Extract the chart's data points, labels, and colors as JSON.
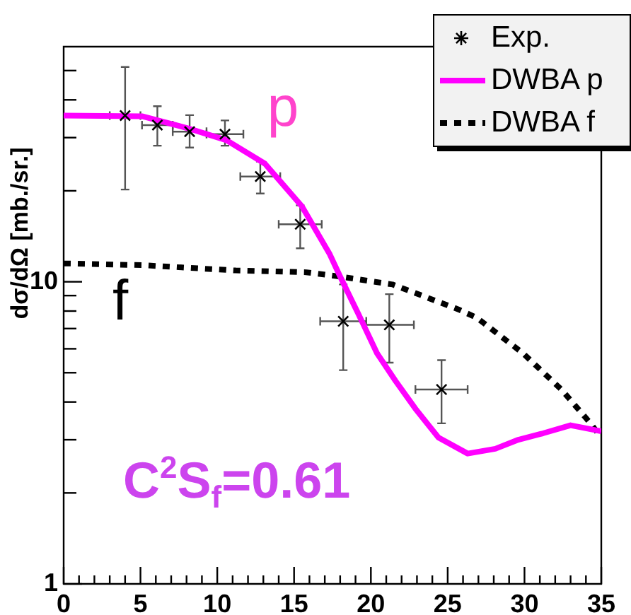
{
  "chart_data": {
    "type": "scatter",
    "ylabel": "dσ/dΩ [mb./sr.]",
    "log": "y",
    "grid": false,
    "legend": "top right",
    "xlim": [
      0,
      35
    ],
    "ylim": [
      1,
      60
    ],
    "xticks": [
      0,
      {
        "value": 1,
        "label": null
      },
      {
        "value": 2,
        "label": null
      },
      {
        "value": 3,
        "label": null
      },
      {
        "value": 4,
        "label": null
      },
      5,
      {
        "value": 6,
        "label": null
      },
      {
        "value": 7,
        "label": null
      },
      {
        "value": 8,
        "label": null
      },
      {
        "value": 9,
        "label": null
      },
      10,
      {
        "value": 11,
        "label": null
      },
      {
        "value": 12,
        "label": null
      },
      {
        "value": 13,
        "label": null
      },
      {
        "value": 14,
        "label": null
      },
      15,
      {
        "value": 16,
        "label": null
      },
      {
        "value": 17,
        "label": null
      },
      {
        "value": 18,
        "label": null
      },
      {
        "value": 19,
        "label": null
      },
      20,
      {
        "value": 21,
        "label": null
      },
      {
        "value": 22,
        "label": null
      },
      {
        "value": 23,
        "label": null
      },
      {
        "value": 24,
        "label": null
      },
      25,
      {
        "value": 26,
        "label": null
      },
      {
        "value": 27,
        "label": null
      },
      {
        "value": 28,
        "label": null
      },
      {
        "value": 29,
        "label": null
      },
      30,
      {
        "value": 31,
        "label": null
      },
      {
        "value": 32,
        "label": null
      },
      {
        "value": 33,
        "label": null
      },
      {
        "value": 34,
        "label": null
      },
      35
    ],
    "yticks": [
      1,
      {
        "value": 2,
        "label": null
      },
      {
        "value": 3,
        "label": null
      },
      {
        "value": 4,
        "label": null
      },
      {
        "value": 5,
        "label": null
      },
      {
        "value": 6,
        "label": null
      },
      {
        "value": 7,
        "label": null
      },
      {
        "value": 8,
        "label": null
      },
      {
        "value": 9,
        "label": null
      },
      10,
      {
        "value": 20,
        "label": null
      },
      {
        "value": 30,
        "label": null
      },
      {
        "value": 40,
        "label": null
      },
      {
        "value": 50,
        "label": null
      }
    ],
    "series": [
      {
        "name": "Exp.",
        "marker": "cross",
        "color": "#000000",
        "x": [
          4.0,
          6.1,
          8.2,
          10.5,
          12.8,
          15.4,
          18.2,
          21.2,
          24.6
        ],
        "values": [
          35.5,
          33.0,
          31.4,
          30.8,
          22.3,
          15.5,
          7.4,
          7.2,
          4.4
        ],
        "errors": [
          [
            20.2,
            51.4
          ],
          [
            28.2,
            38.1
          ],
          [
            27.8,
            35.6
          ],
          [
            28.2,
            34.2
          ],
          [
            19.6,
            25.0
          ],
          [
            12.9,
            17.9
          ],
          [
            5.1,
            9.8
          ],
          [
            5.4,
            9.1
          ],
          [
            3.4,
            5.5
          ]
        ],
        "xerrors": [
          1.0,
          1.0,
          1.1,
          1.2,
          1.3,
          1.4,
          1.5,
          1.6,
          1.7
        ]
      },
      {
        "name": "DWBA p",
        "type": "line",
        "marker": "none",
        "line_style": "solid",
        "color": "#ff00ff",
        "x": [
          0,
          5.1,
          8.1,
          10.6,
          13.1,
          15.5,
          17.3,
          18.0,
          19.2,
          20.4,
          21.6,
          22.9,
          24.4,
          26.3,
          28.1,
          29.6,
          31.2,
          33.0,
          35.0
        ],
        "values": [
          35.5,
          35.3,
          32.2,
          29.4,
          24.6,
          17.8,
          12.4,
          10.4,
          7.8,
          5.8,
          4.7,
          3.8,
          3.05,
          2.7,
          2.8,
          3.0,
          3.15,
          3.35,
          3.2
        ]
      },
      {
        "name": "DWBA f",
        "type": "line",
        "marker": "none",
        "line_style": "dotted",
        "color": "#000000",
        "x": [
          0,
          5.1,
          11.2,
          15.8,
          18.0,
          21.4,
          25.7,
          26.9,
          29.9,
          32.4,
          34.3,
          35.0
        ],
        "values": [
          11.5,
          11.35,
          10.9,
          10.75,
          10.4,
          9.8,
          8.1,
          7.6,
          5.8,
          4.4,
          3.4,
          3.05
        ]
      }
    ],
    "annotations": [
      "p",
      "f",
      "C$^{2}$S$_{f}$=0.61"
    ]
  }
}
